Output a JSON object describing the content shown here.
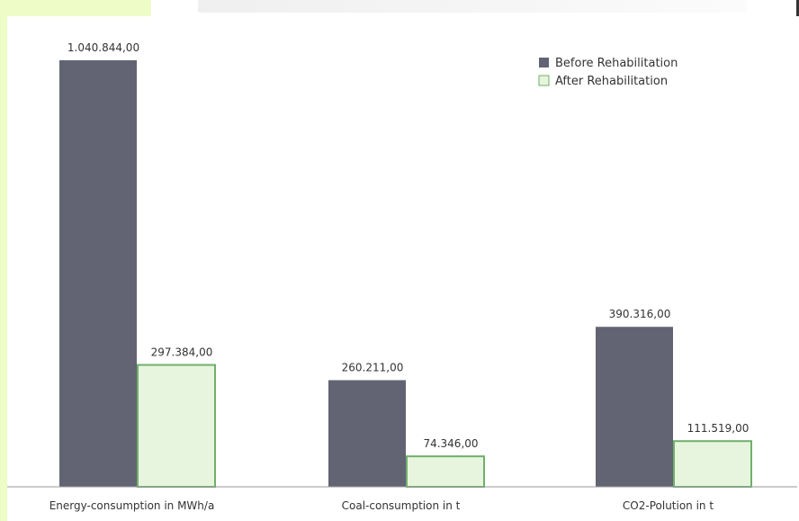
{
  "chart_data": {
    "type": "bar",
    "categories": [
      "Energy-consumption in MWh/a",
      "Coal-consumption in t",
      "CO2-Polution in t"
    ],
    "series": [
      {
        "name": "Before Rehabilitation",
        "values": [
          1040844,
          260211,
          390316
        ],
        "labels": [
          "1.040.844,00",
          "260.211,00",
          "390.316,00"
        ],
        "color": "#626474"
      },
      {
        "name": "After Rehabilitation",
        "values": [
          297384,
          74346,
          111519
        ],
        "labels": [
          "297.384,00",
          "74.346,00",
          "111.519,00"
        ],
        "color": "#e8f5de",
        "stroke": "#6fb06a"
      }
    ],
    "ylim": [
      0,
      1100000
    ],
    "grid": false,
    "legend": "top-right"
  }
}
